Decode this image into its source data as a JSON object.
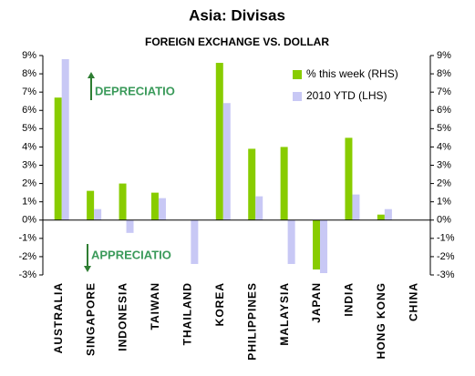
{
  "chart_data": {
    "type": "bar",
    "title": "Asia: Divisas",
    "subtitle": "FOREIGN EXCHANGE VS. DOLLAR",
    "categories": [
      "AUSTRALIA",
      "SINGAPORE",
      "INDONESIA",
      "TAIWAN",
      "THAILAND",
      "KOREA",
      "PHILIPPINES",
      "MALAYSIA",
      "JAPAN",
      "INDIA",
      "HONG KONG",
      "CHINA"
    ],
    "series": [
      {
        "name": "% this week (RHS)",
        "color": "#88cc00",
        "axis": "y2",
        "values": [
          6.7,
          1.6,
          2.0,
          1.5,
          0,
          8.6,
          3.9,
          4.0,
          -2.7,
          4.5,
          0.3,
          0
        ]
      },
      {
        "name": "2010 YTD (LHS)",
        "color": "#c8c8f5",
        "values": [
          8.8,
          0.6,
          -0.7,
          1.2,
          -2.4,
          6.4,
          1.3,
          -2.4,
          -2.9,
          1.4,
          0.6,
          0
        ]
      }
    ],
    "ylim": [
      -3,
      9
    ],
    "yticks": [
      {
        "value": -3,
        "label": "-3%"
      },
      {
        "value": -2,
        "label": "-2%"
      },
      {
        "value": -1,
        "label": "-1%"
      },
      {
        "value": 0,
        "label": "0%"
      },
      {
        "value": 1,
        "label": "1%"
      },
      {
        "value": 2,
        "label": "2%"
      },
      {
        "value": 3,
        "label": "3%"
      },
      {
        "value": 4,
        "label": "4%"
      },
      {
        "value": 5,
        "label": "5%"
      },
      {
        "value": 6,
        "label": "6%"
      },
      {
        "value": 7,
        "label": "7%"
      },
      {
        "value": 8,
        "label": "8%"
      },
      {
        "value": 9,
        "label": "9%"
      }
    ],
    "y2lim": [
      -3,
      9
    ],
    "y2ticks": [
      {
        "value": -3,
        "label": "-3%"
      },
      {
        "value": -2,
        "label": "-2%"
      },
      {
        "value": -1,
        "label": "-1%"
      },
      {
        "value": 0,
        "label": "0%"
      },
      {
        "value": 1,
        "label": "1%"
      },
      {
        "value": 2,
        "label": "2%"
      },
      {
        "value": 3,
        "label": "3%"
      },
      {
        "value": 4,
        "label": "4%"
      },
      {
        "value": 5,
        "label": "5%"
      },
      {
        "value": 6,
        "label": "6%"
      },
      {
        "value": 7,
        "label": "7%"
      },
      {
        "value": 8,
        "label": "8%"
      },
      {
        "value": 9,
        "label": "9%"
      }
    ],
    "annotations": [
      "DEPRECIATIO",
      "APPRECIATIO"
    ],
    "legend": "upper right"
  }
}
